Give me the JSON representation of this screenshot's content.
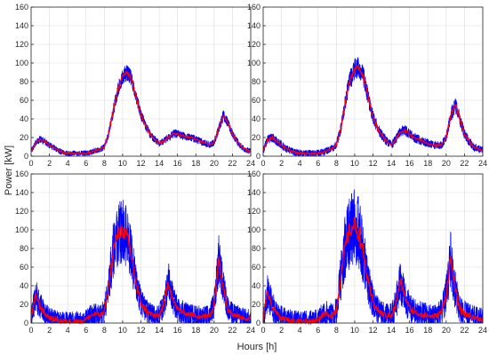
{
  "figure": {
    "ylabel": "Power [kW]",
    "xlabel": "Hours [h]"
  },
  "colors": {
    "envelope": "#0000ff",
    "mean": "#ff0000",
    "grid": "#dcdcdc",
    "axis": "#262626"
  },
  "chart_data": [
    {
      "type": "line",
      "panel": "top-left",
      "xlim": [
        0,
        24
      ],
      "ylim": [
        0,
        160
      ],
      "xticks": [
        0,
        2,
        4,
        6,
        8,
        10,
        12,
        14,
        16,
        18,
        20,
        22,
        24
      ],
      "yticks": [
        0,
        20,
        40,
        60,
        80,
        100,
        120,
        140,
        160
      ],
      "grid": true,
      "series": [
        {
          "role": "mean",
          "x": [
            0,
            0.5,
            1,
            1.5,
            2,
            2.5,
            3,
            3.5,
            4,
            4.5,
            5,
            5.5,
            6,
            6.5,
            7,
            7.5,
            8,
            8.5,
            9,
            9.5,
            10,
            10.5,
            11,
            11.5,
            12,
            12.5,
            13,
            13.5,
            14,
            14.5,
            15,
            15.5,
            16,
            16.5,
            17,
            17.5,
            18,
            18.5,
            19,
            19.5,
            20,
            20.5,
            21,
            21.5,
            22,
            22.5,
            23,
            23.5,
            24
          ],
          "values": [
            5,
            14,
            18,
            16,
            12,
            9,
            6,
            4,
            3,
            3,
            3,
            3,
            3,
            4,
            6,
            7,
            10,
            25,
            50,
            72,
            86,
            90,
            82,
            62,
            45,
            33,
            24,
            18,
            14,
            16,
            20,
            24,
            24,
            22,
            21,
            20,
            18,
            16,
            14,
            12,
            15,
            30,
            44,
            36,
            24,
            16,
            10,
            7,
            5
          ]
        },
        {
          "role": "envelope-upper",
          "spread": 8
        },
        {
          "role": "envelope-lower",
          "spread": 8
        }
      ]
    },
    {
      "type": "line",
      "panel": "top-right",
      "xlim": [
        0,
        24
      ],
      "ylim": [
        0,
        160
      ],
      "xticks": [
        0,
        2,
        4,
        6,
        8,
        10,
        12,
        14,
        16,
        18,
        20,
        22,
        24
      ],
      "yticks": [
        0,
        20,
        40,
        60,
        80,
        100,
        120,
        140,
        160
      ],
      "grid": true,
      "series": [
        {
          "role": "mean",
          "x": [
            0,
            0.5,
            1,
            1.5,
            2,
            2.5,
            3,
            3.5,
            4,
            4.5,
            5,
            5.5,
            6,
            6.5,
            7,
            7.5,
            8,
            8.5,
            9,
            9.5,
            10,
            10.5,
            11,
            11.5,
            12,
            12.5,
            13,
            13.5,
            14,
            14.5,
            15,
            15.5,
            16,
            16.5,
            17,
            17.5,
            18,
            18.5,
            19,
            19.5,
            20,
            20.5,
            21,
            21.5,
            22,
            22.5,
            23,
            23.5,
            24
          ],
          "values": [
            6,
            18,
            20,
            16,
            12,
            8,
            6,
            4,
            3,
            3,
            3,
            3,
            3,
            4,
            6,
            8,
            12,
            30,
            60,
            82,
            93,
            95,
            84,
            62,
            42,
            30,
            22,
            16,
            12,
            18,
            26,
            28,
            24,
            20,
            18,
            16,
            14,
            12,
            12,
            12,
            20,
            44,
            55,
            40,
            24,
            16,
            10,
            8,
            6
          ]
        },
        {
          "role": "envelope-upper",
          "spread": 10
        },
        {
          "role": "envelope-lower",
          "spread": 10
        }
      ]
    },
    {
      "type": "line",
      "panel": "bottom-left",
      "xlim": [
        0,
        24
      ],
      "ylim": [
        0,
        160
      ],
      "xticks": [
        0,
        2,
        4,
        6,
        8,
        10,
        12,
        14,
        16,
        18,
        20,
        22,
        24
      ],
      "yticks": [
        0,
        20,
        40,
        60,
        80,
        100,
        120,
        140,
        160
      ],
      "grid": true,
      "series": [
        {
          "role": "mean",
          "x": [
            0,
            0.5,
            1,
            1.5,
            2,
            2.5,
            3,
            3.5,
            4,
            4.5,
            5,
            5.5,
            6,
            6.5,
            7,
            7.5,
            8,
            8.5,
            9,
            9.5,
            10,
            10.5,
            11,
            11.5,
            12,
            12.5,
            13,
            13.5,
            14,
            14.5,
            15,
            15.5,
            16,
            16.5,
            17,
            17.5,
            18,
            18.5,
            19,
            19.5,
            20,
            20.5,
            21,
            21.5,
            22,
            22.5,
            23,
            23.5,
            24
          ],
          "values": [
            5,
            30,
            18,
            10,
            6,
            4,
            3,
            2,
            2,
            2,
            2,
            2,
            4,
            8,
            10,
            8,
            12,
            40,
            80,
            95,
            100,
            92,
            70,
            40,
            22,
            14,
            10,
            8,
            8,
            20,
            45,
            25,
            15,
            12,
            10,
            9,
            8,
            7,
            7,
            8,
            20,
            70,
            40,
            15,
            10,
            8,
            6,
            5,
            4
          ]
        },
        {
          "role": "envelope-upper",
          "spread": 28
        },
        {
          "role": "envelope-lower",
          "spread": 28
        }
      ]
    },
    {
      "type": "line",
      "panel": "bottom-right",
      "xlim": [
        0,
        24
      ],
      "ylim": [
        0,
        160
      ],
      "xticks": [
        0,
        2,
        4,
        6,
        8,
        10,
        12,
        14,
        16,
        18,
        20,
        22,
        24
      ],
      "yticks": [
        0,
        20,
        40,
        60,
        80,
        100,
        120,
        140,
        160
      ],
      "grid": true,
      "series": [
        {
          "role": "mean",
          "x": [
            0,
            0.5,
            1,
            1.5,
            2,
            2.5,
            3,
            3.5,
            4,
            4.5,
            5,
            5.5,
            6,
            6.5,
            7,
            7.5,
            8,
            8.5,
            9,
            9.5,
            10,
            10.5,
            11,
            11.5,
            12,
            12.5,
            13,
            13.5,
            14,
            14.5,
            15,
            15.5,
            16,
            16.5,
            17,
            17.5,
            18,
            18.5,
            19,
            19.5,
            20,
            20.5,
            21,
            21.5,
            22,
            22.5,
            23,
            23.5,
            24
          ],
          "values": [
            5,
            35,
            18,
            10,
            6,
            4,
            3,
            2,
            2,
            2,
            2,
            2,
            4,
            8,
            10,
            8,
            14,
            50,
            85,
            100,
            105,
            95,
            72,
            42,
            22,
            14,
            10,
            8,
            8,
            20,
            45,
            28,
            16,
            12,
            10,
            9,
            8,
            7,
            8,
            12,
            30,
            70,
            35,
            15,
            10,
            8,
            6,
            5,
            4
          ]
        },
        {
          "role": "envelope-upper",
          "spread": 32
        },
        {
          "role": "envelope-lower",
          "spread": 32
        }
      ]
    }
  ]
}
